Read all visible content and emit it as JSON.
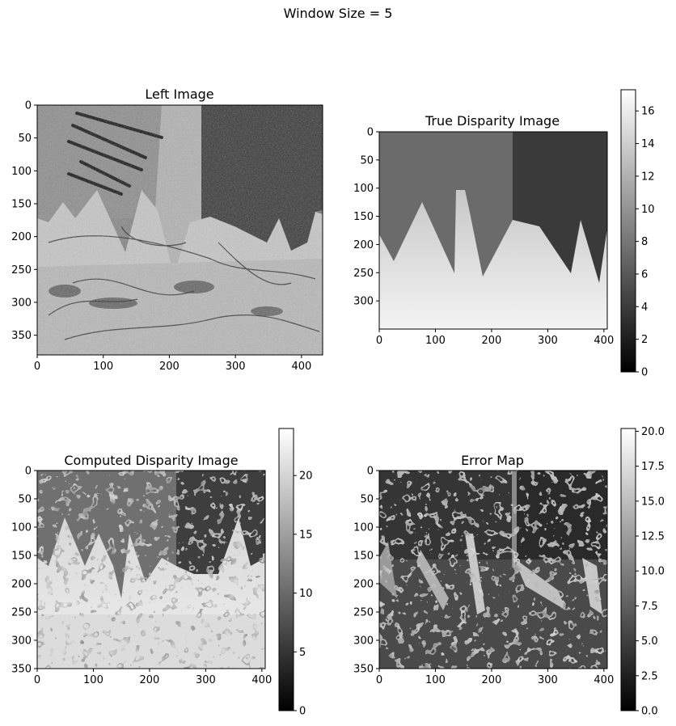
{
  "figure": {
    "suptitle": "Window Size = 5"
  },
  "chart_data": [
    {
      "type": "heatmap",
      "title": "Left Image",
      "xlim": [
        0,
        432
      ],
      "ylim": [
        380,
        0
      ],
      "xticks": [
        0,
        100,
        200,
        300,
        400
      ],
      "yticks": [
        0,
        50,
        100,
        150,
        200,
        250,
        300,
        350
      ],
      "colormap": "gray",
      "colorbar": null
    },
    {
      "type": "heatmap",
      "title": "True Disparity Image",
      "xlim": [
        0,
        406
      ],
      "ylim": [
        350,
        0
      ],
      "xticks": [
        0,
        100,
        200,
        300,
        400
      ],
      "yticks": [
        0,
        50,
        100,
        150,
        200,
        250,
        300
      ],
      "colormap": "gray",
      "colorbar": {
        "min": 0,
        "max": 17.3,
        "ticks": [
          0,
          2,
          4,
          6,
          8,
          10,
          12,
          14,
          16
        ]
      }
    },
    {
      "type": "heatmap",
      "title": "Computed Disparity Image",
      "xlim": [
        0,
        406
      ],
      "ylim": [
        350,
        0
      ],
      "xticks": [
        0,
        100,
        200,
        300,
        400
      ],
      "yticks": [
        0,
        50,
        100,
        150,
        200,
        250,
        300,
        350
      ],
      "colormap": "gray",
      "colorbar": {
        "min": 0,
        "max": 24,
        "ticks": [
          0,
          5,
          10,
          15,
          20
        ]
      }
    },
    {
      "type": "heatmap",
      "title": "Error Map",
      "xlim": [
        0,
        406
      ],
      "ylim": [
        350,
        0
      ],
      "xticks": [
        0,
        100,
        200,
        300,
        400
      ],
      "yticks": [
        0,
        50,
        100,
        150,
        200,
        250,
        300,
        350
      ],
      "colormap": "gray",
      "colorbar": {
        "min": 0,
        "max": 20.2,
        "ticks": [
          0.0,
          2.5,
          5.0,
          7.5,
          10.0,
          12.5,
          15.0,
          17.5,
          20.0
        ]
      }
    }
  ]
}
